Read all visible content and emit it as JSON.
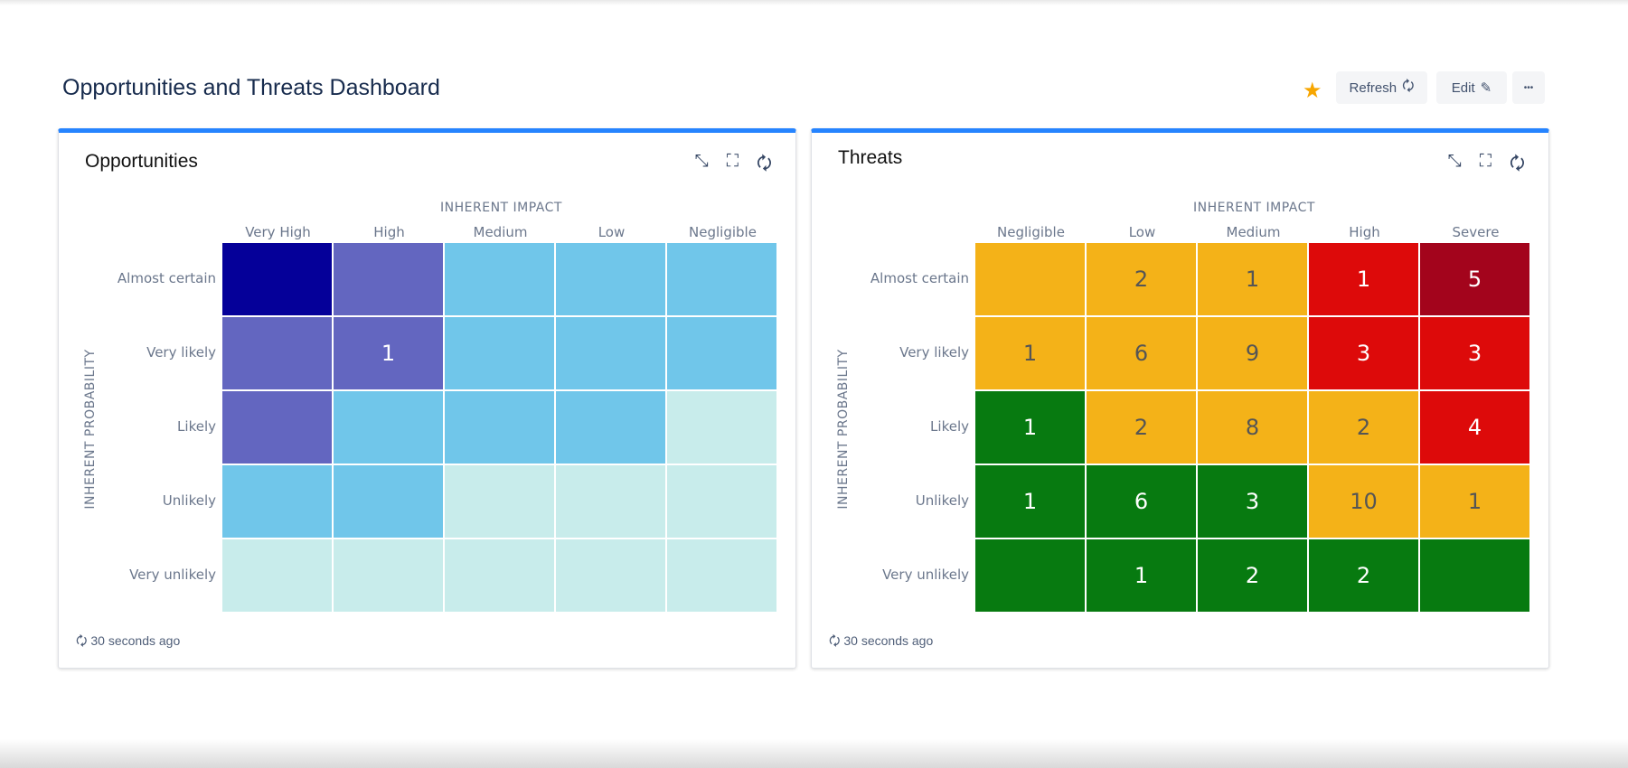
{
  "header": {
    "title": "Opportunities and Threats Dashboard",
    "refresh_label": "Refresh",
    "edit_label": "Edit",
    "more_label": "•••",
    "star_icon": "★",
    "refresh_icon": "🗘",
    "edit_icon": "✎"
  },
  "colors": {
    "accent": "#2684ff",
    "opp": {
      "dark": "#050099",
      "purple": "#6366c0",
      "blue": "#70c6ea",
      "light": "#c8eceb"
    },
    "thr": {
      "yellow": "#f4b218",
      "red": "#dd0a0a",
      "darkred": "#a3041c",
      "green": "#077a10"
    }
  },
  "panels": [
    {
      "title": "Opportunities",
      "x_axis": "INHERENT IMPACT",
      "y_axis": "INHERENT PROBABILITY",
      "columns": [
        "Very High",
        "High",
        "Medium",
        "Low",
        "Negligible"
      ],
      "rows": [
        "Almost certain",
        "Very likely",
        "Likely",
        "Unlikely",
        "Very unlikely"
      ],
      "palette": "opp",
      "cells": [
        [
          {
            "level": "dark",
            "value": ""
          },
          {
            "level": "purple",
            "value": ""
          },
          {
            "level": "blue",
            "value": ""
          },
          {
            "level": "blue",
            "value": ""
          },
          {
            "level": "blue",
            "value": ""
          }
        ],
        [
          {
            "level": "purple",
            "value": ""
          },
          {
            "level": "purple",
            "value": "1"
          },
          {
            "level": "blue",
            "value": ""
          },
          {
            "level": "blue",
            "value": ""
          },
          {
            "level": "blue",
            "value": ""
          }
        ],
        [
          {
            "level": "purple",
            "value": ""
          },
          {
            "level": "blue",
            "value": ""
          },
          {
            "level": "blue",
            "value": ""
          },
          {
            "level": "blue",
            "value": ""
          },
          {
            "level": "light",
            "value": ""
          }
        ],
        [
          {
            "level": "blue",
            "value": ""
          },
          {
            "level": "blue",
            "value": ""
          },
          {
            "level": "light",
            "value": ""
          },
          {
            "level": "light",
            "value": ""
          },
          {
            "level": "light",
            "value": ""
          }
        ],
        [
          {
            "level": "light",
            "value": ""
          },
          {
            "level": "light",
            "value": ""
          },
          {
            "level": "light",
            "value": ""
          },
          {
            "level": "light",
            "value": ""
          },
          {
            "level": "light",
            "value": ""
          }
        ]
      ],
      "footer": "30 seconds ago"
    },
    {
      "title": "Threats",
      "x_axis": "INHERENT IMPACT",
      "y_axis": "INHERENT PROBABILITY",
      "columns": [
        "Negligible",
        "Low",
        "Medium",
        "High",
        "Severe"
      ],
      "rows": [
        "Almost certain",
        "Very likely",
        "Likely",
        "Unlikely",
        "Very unlikely"
      ],
      "palette": "thr",
      "cells": [
        [
          {
            "level": "yellow",
            "value": ""
          },
          {
            "level": "yellow",
            "value": "2"
          },
          {
            "level": "yellow",
            "value": "1"
          },
          {
            "level": "red",
            "value": "1"
          },
          {
            "level": "darkred",
            "value": "5"
          }
        ],
        [
          {
            "level": "yellow",
            "value": "1"
          },
          {
            "level": "yellow",
            "value": "6"
          },
          {
            "level": "yellow",
            "value": "9"
          },
          {
            "level": "red",
            "value": "3"
          },
          {
            "level": "red",
            "value": "3"
          }
        ],
        [
          {
            "level": "green",
            "value": "1"
          },
          {
            "level": "yellow",
            "value": "2"
          },
          {
            "level": "yellow",
            "value": "8"
          },
          {
            "level": "yellow",
            "value": "2"
          },
          {
            "level": "red",
            "value": "4"
          }
        ],
        [
          {
            "level": "green",
            "value": "1"
          },
          {
            "level": "green",
            "value": "6"
          },
          {
            "level": "green",
            "value": "3"
          },
          {
            "level": "yellow",
            "value": "10"
          },
          {
            "level": "yellow",
            "value": "1"
          }
        ],
        [
          {
            "level": "green",
            "value": ""
          },
          {
            "level": "green",
            "value": "1"
          },
          {
            "level": "green",
            "value": "2"
          },
          {
            "level": "green",
            "value": "2"
          },
          {
            "level": "green",
            "value": ""
          }
        ]
      ],
      "footer": "30 seconds ago"
    }
  ]
}
